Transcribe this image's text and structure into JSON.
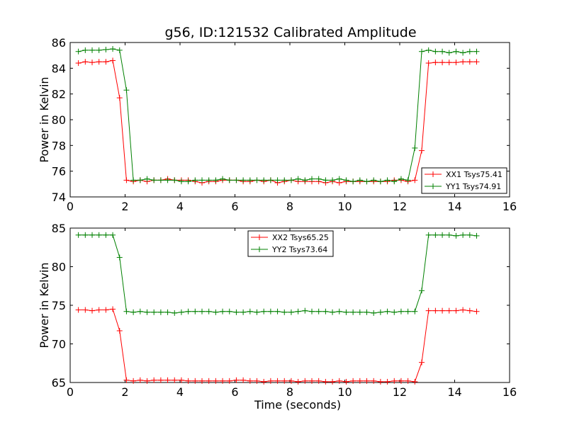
{
  "figure": {
    "title": "g56, ID:121532 Calibrated Amplitude"
  },
  "chart_data": [
    {
      "type": "line",
      "title": "g56, ID:121532 Calibrated Amplitude",
      "xlabel": "",
      "ylabel": "Power in Kelvin",
      "xlim": [
        0,
        16
      ],
      "ylim": [
        74,
        86
      ],
      "xticks": [
        "0",
        "2",
        "4",
        "6",
        "8",
        "10",
        "12",
        "14",
        "16"
      ],
      "yticks": [
        "74",
        "76",
        "78",
        "80",
        "82",
        "84",
        "86"
      ],
      "grid": false,
      "legend_position": "lower-right",
      "x": [
        0.3,
        0.55,
        0.8,
        1.05,
        1.3,
        1.55,
        1.8,
        2.05,
        2.3,
        2.55,
        2.8,
        3.05,
        3.3,
        3.55,
        3.8,
        4.05,
        4.3,
        4.55,
        4.8,
        5.05,
        5.3,
        5.55,
        5.8,
        6.05,
        6.3,
        6.55,
        6.8,
        7.05,
        7.3,
        7.55,
        7.8,
        8.05,
        8.3,
        8.55,
        8.8,
        9.05,
        9.3,
        9.55,
        9.8,
        10.05,
        10.3,
        10.55,
        10.8,
        11.05,
        11.3,
        11.55,
        11.8,
        12.05,
        12.3,
        12.55,
        12.8,
        13.05,
        13.3,
        13.55,
        13.8,
        14.05,
        14.3,
        14.55,
        14.8
      ],
      "series": [
        {
          "name": "XX1 Tsys75.41",
          "color": "#ff0000",
          "values": [
            84.4,
            84.5,
            84.45,
            84.5,
            84.5,
            84.6,
            81.7,
            75.3,
            75.2,
            75.3,
            75.2,
            75.3,
            75.3,
            75.4,
            75.3,
            75.3,
            75.3,
            75.2,
            75.1,
            75.2,
            75.2,
            75.3,
            75.3,
            75.3,
            75.2,
            75.2,
            75.3,
            75.2,
            75.3,
            75.1,
            75.2,
            75.3,
            75.2,
            75.2,
            75.2,
            75.2,
            75.1,
            75.2,
            75.1,
            75.2,
            75.2,
            75.2,
            75.2,
            75.2,
            75.2,
            75.2,
            75.3,
            75.3,
            75.2,
            75.3,
            77.6,
            84.4,
            84.45,
            84.45,
            84.45,
            84.45,
            84.5,
            84.5,
            84.5
          ]
        },
        {
          "name": "YY1 Tsys74.91",
          "color": "#008000",
          "values": [
            85.3,
            85.4,
            85.4,
            85.4,
            85.45,
            85.5,
            85.4,
            82.3,
            75.3,
            75.3,
            75.4,
            75.3,
            75.3,
            75.3,
            75.3,
            75.2,
            75.2,
            75.3,
            75.3,
            75.3,
            75.3,
            75.4,
            75.3,
            75.3,
            75.3,
            75.3,
            75.3,
            75.3,
            75.3,
            75.3,
            75.3,
            75.3,
            75.4,
            75.3,
            75.4,
            75.4,
            75.3,
            75.3,
            75.4,
            75.3,
            75.2,
            75.3,
            75.2,
            75.3,
            75.2,
            75.3,
            75.2,
            75.4,
            75.3,
            77.8,
            85.3,
            85.4,
            85.3,
            85.3,
            85.2,
            85.3,
            85.2,
            85.3,
            85.3
          ]
        }
      ]
    },
    {
      "type": "line",
      "title": "",
      "xlabel": "Time (seconds)",
      "ylabel": "Power in Kelvin",
      "xlim": [
        0,
        16
      ],
      "ylim": [
        65,
        85
      ],
      "xticks": [
        "0",
        "2",
        "4",
        "6",
        "8",
        "10",
        "12",
        "14",
        "16"
      ],
      "yticks": [
        "65",
        "70",
        "75",
        "80",
        "85"
      ],
      "grid": false,
      "legend_position": "upper-center",
      "x": [
        0.3,
        0.55,
        0.8,
        1.05,
        1.3,
        1.55,
        1.8,
        2.05,
        2.3,
        2.55,
        2.8,
        3.05,
        3.3,
        3.55,
        3.8,
        4.05,
        4.3,
        4.55,
        4.8,
        5.05,
        5.3,
        5.55,
        5.8,
        6.05,
        6.3,
        6.55,
        6.8,
        7.05,
        7.3,
        7.55,
        7.8,
        8.05,
        8.3,
        8.55,
        8.8,
        9.05,
        9.3,
        9.55,
        9.8,
        10.05,
        10.3,
        10.55,
        10.8,
        11.05,
        11.3,
        11.55,
        11.8,
        12.05,
        12.3,
        12.55,
        12.8,
        13.05,
        13.3,
        13.55,
        13.8,
        14.05,
        14.3,
        14.55,
        14.8
      ],
      "series": [
        {
          "name": "XX2 Tsys65.25",
          "color": "#ff0000",
          "values": [
            74.4,
            74.4,
            74.3,
            74.4,
            74.4,
            74.5,
            71.7,
            65.3,
            65.2,
            65.3,
            65.2,
            65.3,
            65.3,
            65.3,
            65.3,
            65.3,
            65.2,
            65.2,
            65.2,
            65.2,
            65.2,
            65.2,
            65.2,
            65.3,
            65.3,
            65.2,
            65.2,
            65.1,
            65.2,
            65.2,
            65.2,
            65.2,
            65.1,
            65.2,
            65.2,
            65.2,
            65.1,
            65.1,
            65.2,
            65.1,
            65.2,
            65.2,
            65.2,
            65.2,
            65.1,
            65.1,
            65.2,
            65.2,
            65.2,
            65.1,
            67.6,
            74.3,
            74.3,
            74.3,
            74.3,
            74.3,
            74.4,
            74.3,
            74.2
          ]
        },
        {
          "name": "YY2 Tsys73.64",
          "color": "#008000",
          "values": [
            84.1,
            84.1,
            84.1,
            84.1,
            84.1,
            84.1,
            81.2,
            74.2,
            74.1,
            74.2,
            74.1,
            74.1,
            74.1,
            74.1,
            74.0,
            74.1,
            74.2,
            74.2,
            74.2,
            74.2,
            74.1,
            74.2,
            74.2,
            74.1,
            74.1,
            74.2,
            74.1,
            74.2,
            74.2,
            74.2,
            74.1,
            74.1,
            74.2,
            74.3,
            74.2,
            74.2,
            74.2,
            74.1,
            74.2,
            74.1,
            74.1,
            74.1,
            74.1,
            74.0,
            74.1,
            74.2,
            74.1,
            74.2,
            74.2,
            74.2,
            76.9,
            84.1,
            84.1,
            84.1,
            84.1,
            84.0,
            84.1,
            84.1,
            84.0
          ]
        }
      ]
    }
  ]
}
